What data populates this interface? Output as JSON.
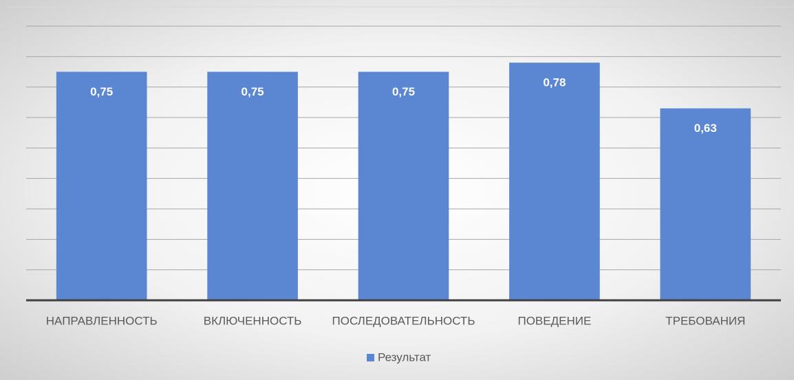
{
  "chart_data": {
    "type": "bar",
    "categories": [
      "НАПРАВЛЕННОСТЬ",
      "ВКЛЮЧЕННОСТЬ",
      "ПОСЛЕДОВАТЕЛЬНОСТЬ",
      "ПОВЕДЕНИЕ",
      "ТРЕБОВАНИЯ"
    ],
    "series": [
      {
        "name": "Результат",
        "color": "#5b86d1",
        "values": [
          0.75,
          0.75,
          0.75,
          0.78,
          0.63
        ],
        "value_labels": [
          "0,75",
          "0,75",
          "0,75",
          "0,78",
          "0,63"
        ]
      }
    ],
    "ylim": [
      0,
      0.9
    ],
    "yticks": [
      0,
      0.1,
      0.2,
      0.3,
      0.4,
      0.5,
      0.6,
      0.7,
      0.8,
      0.9
    ],
    "grid": true
  }
}
